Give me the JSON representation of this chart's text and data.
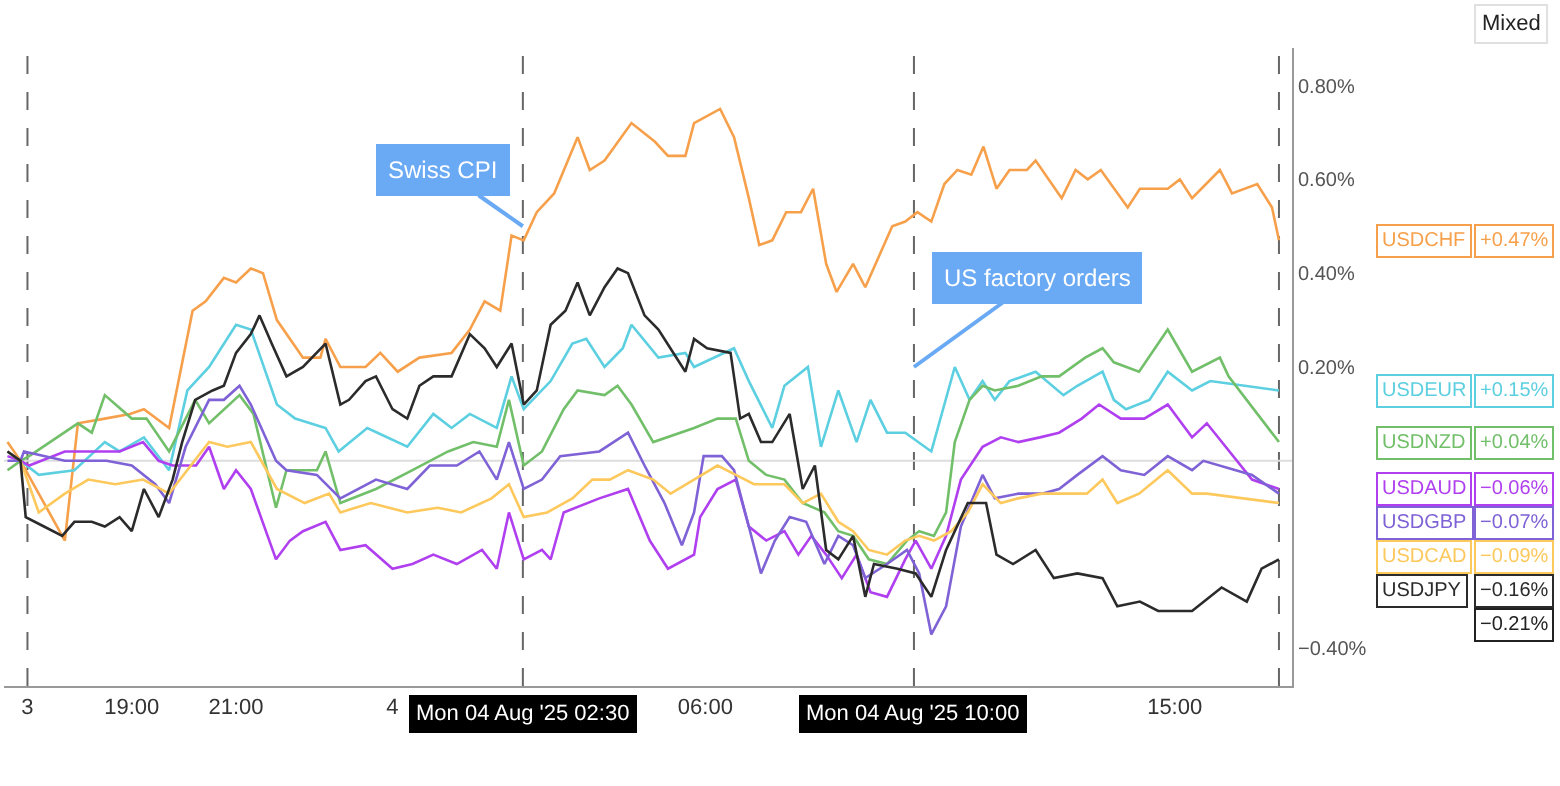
{
  "chart_data": {
    "type": "line",
    "legend": "right",
    "xlim": [
      "2025-08-03T16:33",
      "2025-08-04T17:15"
    ],
    "ylim": [
      -0.48,
      0.88
    ],
    "xticks": [
      {
        "value": "2025-08-03T17:00",
        "label": "3"
      },
      {
        "value": "2025-08-03T19:00",
        "label": "19:00"
      },
      {
        "value": "2025-08-03T21:00",
        "label": "21:00"
      },
      {
        "value": "2025-08-04T00:00",
        "label": "4"
      },
      {
        "value": "2025-08-04T06:00",
        "label": "06:00"
      },
      {
        "value": "2025-08-04T15:00",
        "label": "15:00"
      }
    ],
    "yticks": [
      {
        "value": 0.8,
        "label": "0.80%"
      },
      {
        "value": 0.6,
        "label": "0.60%"
      },
      {
        "value": 0.4,
        "label": "0.40%"
      },
      {
        "value": 0.2,
        "label": "0.20%"
      },
      {
        "value": -0.4,
        "label": "−0.40%"
      }
    ],
    "series": [
      {
        "name": "USDCHF",
        "color": "#f7a04b",
        "x": [
          "2025-08-03T16:37",
          "2025-08-03T16:52",
          "2025-08-03T17:43",
          "2025-08-03T17:58",
          "2025-08-03T18:29",
          "2025-08-03T18:58",
          "2025-08-03T19:14",
          "2025-08-03T19:43",
          "2025-08-03T20:10",
          "2025-08-03T20:25",
          "2025-08-03T20:46",
          "2025-08-03T21:00",
          "2025-08-03T21:17",
          "2025-08-03T21:31",
          "2025-08-03T21:47",
          "2025-08-03T22:17",
          "2025-08-03T22:37",
          "2025-08-03T22:43",
          "2025-08-03T23:00",
          "2025-08-03T23:29",
          "2025-08-03T23:46",
          "2025-08-04T00:06",
          "2025-08-04T00:31",
          "2025-08-04T01:08",
          "2025-08-04T01:29",
          "2025-08-04T01:46",
          "2025-08-04T02:04",
          "2025-08-04T02:17",
          "2025-08-04T02:31",
          "2025-08-04T02:46",
          "2025-08-04T03:06",
          "2025-08-04T03:33",
          "2025-08-04T03:47",
          "2025-08-04T04:04",
          "2025-08-04T04:35",
          "2025-08-04T05:02",
          "2025-08-04T05:17",
          "2025-08-04T05:37",
          "2025-08-04T05:47",
          "2025-08-04T06:17",
          "2025-08-04T06:33",
          "2025-08-04T06:50",
          "2025-08-04T07:02",
          "2025-08-04T07:17",
          "2025-08-04T07:33",
          "2025-08-04T07:50",
          "2025-08-04T08:04",
          "2025-08-04T08:19",
          "2025-08-04T08:31",
          "2025-08-04T08:50",
          "2025-08-04T09:04",
          "2025-08-04T09:35",
          "2025-08-04T09:50",
          "2025-08-04T10:04",
          "2025-08-04T10:20",
          "2025-08-04T10:35",
          "2025-08-04T10:50",
          "2025-08-04T11:06",
          "2025-08-04T11:20",
          "2025-08-04T11:35",
          "2025-08-04T11:50",
          "2025-08-04T12:10",
          "2025-08-04T12:20",
          "2025-08-04T12:50",
          "2025-08-04T13:06",
          "2025-08-04T13:20",
          "2025-08-04T13:35",
          "2025-08-04T14:06",
          "2025-08-04T14:20",
          "2025-08-04T14:52",
          "2025-08-04T15:06",
          "2025-08-04T15:20",
          "2025-08-04T15:52",
          "2025-08-04T16:06",
          "2025-08-04T16:35",
          "2025-08-04T16:52",
          "2025-08-04T17:00"
        ],
        "values": [
          0.04,
          0,
          -0.17,
          0.08,
          0.09,
          0.1,
          0.11,
          0.07,
          0.32,
          0.34,
          0.39,
          0.38,
          0.41,
          0.4,
          0.3,
          0.22,
          0.22,
          0.26,
          0.2,
          0.2,
          0.23,
          0.19,
          0.22,
          0.23,
          0.28,
          0.34,
          0.32,
          0.48,
          0.47,
          0.53,
          0.57,
          0.69,
          0.62,
          0.64,
          0.72,
          0.68,
          0.65,
          0.65,
          0.72,
          0.75,
          0.69,
          0.56,
          0.46,
          0.47,
          0.53,
          0.53,
          0.58,
          0.42,
          0.36,
          0.42,
          0.37,
          0.5,
          0.51,
          0.53,
          0.51,
          0.59,
          0.62,
          0.61,
          0.67,
          0.58,
          0.62,
          0.62,
          0.64,
          0.56,
          0.62,
          0.6,
          0.62,
          0.54,
          0.58,
          0.58,
          0.6,
          0.56,
          0.62,
          0.57,
          0.59,
          0.54,
          0.47
        ]
      },
      {
        "name": "USDEUR",
        "color": "#5ccfe0",
        "x": [
          "2025-08-03T16:37",
          "2025-08-03T16:52",
          "2025-08-03T17:13",
          "2025-08-03T17:54",
          "2025-08-03T18:29",
          "2025-08-03T18:46",
          "2025-08-03T19:14",
          "2025-08-03T19:43",
          "2025-08-03T20:04",
          "2025-08-03T20:29",
          "2025-08-03T21:00",
          "2025-08-03T21:17",
          "2025-08-03T21:47",
          "2025-08-03T22:08",
          "2025-08-03T22:43",
          "2025-08-03T22:58",
          "2025-08-03T23:31",
          "2025-08-04T00:17",
          "2025-08-04T00:47",
          "2025-08-04T01:08",
          "2025-08-04T01:29",
          "2025-08-04T02:00",
          "2025-08-04T02:17",
          "2025-08-04T02:31",
          "2025-08-04T03:02",
          "2025-08-04T03:27",
          "2025-08-04T03:43",
          "2025-08-04T04:04",
          "2025-08-04T04:25",
          "2025-08-04T04:35",
          "2025-08-04T05:06",
          "2025-08-04T05:37",
          "2025-08-04T05:47",
          "2025-08-04T06:33",
          "2025-08-04T06:50",
          "2025-08-04T07:17",
          "2025-08-04T07:31",
          "2025-08-04T07:58",
          "2025-08-04T08:13",
          "2025-08-04T08:33",
          "2025-08-04T08:54",
          "2025-08-04T09:10",
          "2025-08-04T09:29",
          "2025-08-04T09:50",
          "2025-08-04T10:20",
          "2025-08-04T10:47",
          "2025-08-04T11:04",
          "2025-08-04T11:19",
          "2025-08-04T11:33",
          "2025-08-04T11:50",
          "2025-08-04T12:20",
          "2025-08-04T12:52",
          "2025-08-04T13:08",
          "2025-08-04T13:37",
          "2025-08-04T13:50",
          "2025-08-04T14:04",
          "2025-08-04T14:31",
          "2025-08-04T14:52",
          "2025-08-04T15:20",
          "2025-08-04T15:41",
          "2025-08-04T17:00"
        ],
        "values": [
          0.02,
          0,
          -0.03,
          -0.02,
          0.04,
          0.02,
          0.05,
          -0.02,
          0.15,
          0.2,
          0.29,
          0.28,
          0.12,
          0.09,
          0.07,
          0.02,
          0.07,
          0.03,
          0.1,
          0.07,
          0.1,
          0.07,
          0.18,
          0.11,
          0.17,
          0.25,
          0.26,
          0.2,
          0.24,
          0.29,
          0.22,
          0.23,
          0.2,
          0.24,
          0.17,
          0.07,
          0.16,
          0.2,
          0.03,
          0.15,
          0.04,
          0.13,
          0.06,
          0.06,
          0.02,
          0.2,
          0.13,
          0.17,
          0.13,
          0.17,
          0.19,
          0.14,
          0.16,
          0.19,
          0.13,
          0.11,
          0.13,
          0.19,
          0.15,
          0.17,
          0.15
        ]
      },
      {
        "name": "USDNZD",
        "color": "#72bf6a",
        "x": [
          "2025-08-03T16:37",
          "2025-08-03T16:52",
          "2025-08-03T17:02",
          "2025-08-03T17:58",
          "2025-08-03T18:14",
          "2025-08-03T18:29",
          "2025-08-03T19:00",
          "2025-08-03T19:17",
          "2025-08-03T19:43",
          "2025-08-03T20:13",
          "2025-08-03T20:29",
          "2025-08-03T21:04",
          "2025-08-03T21:20",
          "2025-08-03T21:46",
          "2025-08-03T21:58",
          "2025-08-03T22:33",
          "2025-08-03T22:43",
          "2025-08-03T23:00",
          "2025-08-03T23:41",
          "2025-08-04T00:23",
          "2025-08-04T01:04",
          "2025-08-04T01:33",
          "2025-08-04T02:00",
          "2025-08-04T02:14",
          "2025-08-04T02:31",
          "2025-08-04T02:52",
          "2025-08-04T03:17",
          "2025-08-04T03:33",
          "2025-08-04T04:04",
          "2025-08-04T04:19",
          "2025-08-04T04:35",
          "2025-08-04T05:00",
          "2025-08-04T05:47",
          "2025-08-04T06:14",
          "2025-08-04T06:35",
          "2025-08-04T06:50",
          "2025-08-04T07:10",
          "2025-08-04T07:31",
          "2025-08-04T07:52",
          "2025-08-04T08:17",
          "2025-08-04T08:33",
          "2025-08-04T08:50",
          "2025-08-04T09:08",
          "2025-08-04T09:29",
          "2025-08-04T09:52",
          "2025-08-04T10:06",
          "2025-08-04T10:23",
          "2025-08-04T10:37",
          "2025-08-04T10:47",
          "2025-08-04T11:04",
          "2025-08-04T11:19",
          "2025-08-04T11:33",
          "2025-08-04T12:00",
          "2025-08-04T12:27",
          "2025-08-04T12:47",
          "2025-08-04T13:17",
          "2025-08-04T13:37",
          "2025-08-04T13:50",
          "2025-08-04T14:19",
          "2025-08-04T14:52",
          "2025-08-04T15:20",
          "2025-08-04T15:52",
          "2025-08-04T16:02",
          "2025-08-04T17:00"
        ],
        "values": [
          -0.02,
          0,
          0.01,
          0.08,
          0.06,
          0.14,
          0.09,
          0.09,
          0.02,
          0.13,
          0.08,
          0.14,
          0.1,
          -0.1,
          -0.02,
          -0.02,
          0.02,
          -0.09,
          -0.06,
          -0.02,
          0.02,
          0.04,
          0.03,
          0.13,
          -0.01,
          0.02,
          0.11,
          0.15,
          0.14,
          0.16,
          0.12,
          0.04,
          0.07,
          0.09,
          0.09,
          0,
          -0.03,
          -0.04,
          -0.09,
          -0.11,
          -0.15,
          -0.16,
          -0.21,
          -0.22,
          -0.17,
          -0.15,
          -0.16,
          -0.11,
          0.04,
          0.13,
          0.16,
          0.15,
          0.16,
          0.18,
          0.18,
          0.22,
          0.24,
          0.21,
          0.19,
          0.28,
          0.19,
          0.22,
          0.18,
          0.04
        ]
      },
      {
        "name": "USDAUD",
        "color": "#b03ff0",
        "x": [
          "2025-08-03T16:37",
          "2025-08-03T16:52",
          "2025-08-03T17:02",
          "2025-08-03T17:43",
          "2025-08-03T18:25",
          "2025-08-03T18:46",
          "2025-08-03T19:13",
          "2025-08-03T19:31",
          "2025-08-03T19:47",
          "2025-08-03T20:14",
          "2025-08-03T20:29",
          "2025-08-03T20:46",
          "2025-08-03T21:00",
          "2025-08-03T21:17",
          "2025-08-03T21:46",
          "2025-08-03T22:02",
          "2025-08-03T22:17",
          "2025-08-03T22:43",
          "2025-08-03T23:00",
          "2025-08-03T23:29",
          "2025-08-04T00:00",
          "2025-08-04T00:23",
          "2025-08-04T00:47",
          "2025-08-04T01:14",
          "2025-08-04T01:43",
          "2025-08-04T02:00",
          "2025-08-04T02:14",
          "2025-08-04T02:31",
          "2025-08-04T02:52",
          "2025-08-04T03:02",
          "2025-08-04T03:17",
          "2025-08-04T03:58",
          "2025-08-04T04:31",
          "2025-08-04T04:56",
          "2025-08-04T05:17",
          "2025-08-04T05:47",
          "2025-08-04T05:54",
          "2025-08-04T06:14",
          "2025-08-04T06:35",
          "2025-08-04T06:50",
          "2025-08-04T07:10",
          "2025-08-04T07:31",
          "2025-08-04T07:47",
          "2025-08-04T08:02",
          "2025-08-04T08:19",
          "2025-08-04T08:37",
          "2025-08-04T08:54",
          "2025-08-04T09:10",
          "2025-08-04T09:29",
          "2025-08-04T09:50",
          "2025-08-04T10:02",
          "2025-08-04T10:20",
          "2025-08-04T10:37",
          "2025-08-04T10:54",
          "2025-08-04T11:19",
          "2025-08-04T11:40",
          "2025-08-04T12:00",
          "2025-08-04T12:25",
          "2025-08-04T12:47",
          "2025-08-04T13:13",
          "2025-08-04T13:33",
          "2025-08-04T13:58",
          "2025-08-04T14:25",
          "2025-08-04T14:52",
          "2025-08-04T15:20",
          "2025-08-04T15:37",
          "2025-08-04T16:29",
          "2025-08-04T17:00"
        ],
        "values": [
          0.01,
          0,
          -0.01,
          0.02,
          0.02,
          0.02,
          0.04,
          0,
          -0.01,
          -0.01,
          0.03,
          -0.06,
          -0.02,
          -0.06,
          -0.21,
          -0.17,
          -0.15,
          -0.13,
          -0.19,
          -0.18,
          -0.23,
          -0.22,
          -0.2,
          -0.22,
          -0.19,
          -0.23,
          -0.11,
          -0.21,
          -0.19,
          -0.21,
          -0.11,
          -0.08,
          -0.06,
          -0.17,
          -0.23,
          -0.2,
          -0.12,
          -0.06,
          -0.04,
          -0.14,
          -0.17,
          -0.15,
          -0.2,
          -0.16,
          -0.2,
          -0.25,
          -0.2,
          -0.28,
          -0.29,
          -0.21,
          -0.17,
          -0.23,
          -0.16,
          -0.04,
          0.03,
          0.05,
          0.04,
          0.05,
          0.06,
          0.09,
          0.12,
          0.09,
          0.09,
          0.12,
          0.05,
          0.08,
          -0.04,
          -0.06
        ]
      },
      {
        "name": "USDGBP",
        "color": "#7e62d6",
        "x": [
          "2025-08-03T16:37",
          "2025-08-03T16:52",
          "2025-08-03T16:56",
          "2025-08-03T17:43",
          "2025-08-03T18:31",
          "2025-08-03T19:00",
          "2025-08-03T19:27",
          "2025-08-03T19:43",
          "2025-08-03T20:02",
          "2025-08-03T20:29",
          "2025-08-03T20:46",
          "2025-08-03T21:04",
          "2025-08-03T21:17",
          "2025-08-03T21:46",
          "2025-08-03T21:58",
          "2025-08-03T22:33",
          "2025-08-03T23:00",
          "2025-08-03T23:41",
          "2025-08-04T00:17",
          "2025-08-04T00:43",
          "2025-08-04T01:14",
          "2025-08-04T01:40",
          "2025-08-04T02:00",
          "2025-08-04T02:14",
          "2025-08-04T02:31",
          "2025-08-04T02:52",
          "2025-08-04T03:13",
          "2025-08-04T03:58",
          "2025-08-04T04:31",
          "2025-08-04T04:50",
          "2025-08-04T05:13",
          "2025-08-04T05:33",
          "2025-08-04T05:47",
          "2025-08-04T05:58",
          "2025-08-04T06:19",
          "2025-08-04T06:33",
          "2025-08-04T06:50",
          "2025-08-04T07:04",
          "2025-08-04T07:20",
          "2025-08-04T07:37",
          "2025-08-04T07:56",
          "2025-08-04T08:17",
          "2025-08-04T08:33",
          "2025-08-04T08:50",
          "2025-08-04T09:04",
          "2025-08-04T09:29",
          "2025-08-04T09:52",
          "2025-08-04T10:06",
          "2025-08-04T10:20",
          "2025-08-04T10:37",
          "2025-08-04T10:54",
          "2025-08-04T11:19",
          "2025-08-04T11:33",
          "2025-08-04T12:00",
          "2025-08-04T12:27",
          "2025-08-04T12:47",
          "2025-08-04T13:08",
          "2025-08-04T13:37",
          "2025-08-04T13:58",
          "2025-08-04T14:25",
          "2025-08-04T14:52",
          "2025-08-04T15:20",
          "2025-08-04T15:33",
          "2025-08-04T16:29",
          "2025-08-04T17:00"
        ],
        "values": [
          0,
          0,
          0.02,
          0,
          0,
          -0.01,
          -0.05,
          -0.09,
          0.03,
          0.13,
          0.13,
          0.16,
          0.12,
          0,
          -0.02,
          -0.03,
          -0.08,
          -0.04,
          -0.06,
          -0.01,
          -0.01,
          0.02,
          -0.04,
          0.04,
          -0.06,
          -0.04,
          0.01,
          0.02,
          0.06,
          -0.01,
          -0.09,
          -0.18,
          -0.11,
          0.01,
          0.01,
          -0.02,
          -0.14,
          -0.24,
          -0.17,
          -0.12,
          -0.13,
          -0.22,
          -0.16,
          -0.18,
          -0.25,
          -0.22,
          -0.19,
          -0.24,
          -0.37,
          -0.31,
          -0.14,
          -0.03,
          -0.08,
          -0.07,
          -0.07,
          -0.06,
          -0.03,
          0.01,
          -0.02,
          -0.03,
          0.01,
          -0.02,
          0,
          -0.03,
          -0.07
        ]
      },
      {
        "name": "USDCAD",
        "color": "#fdc85c",
        "x": [
          "2025-08-03T16:37",
          "2025-08-03T16:52",
          "2025-08-03T17:13",
          "2025-08-03T17:43",
          "2025-08-03T18:10",
          "2025-08-03T18:41",
          "2025-08-03T19:13",
          "2025-08-03T19:43",
          "2025-08-03T20:08",
          "2025-08-03T20:29",
          "2025-08-03T20:50",
          "2025-08-03T21:17",
          "2025-08-03T21:47",
          "2025-08-03T22:19",
          "2025-08-03T22:47",
          "2025-08-03T23:00",
          "2025-08-03T23:35",
          "2025-08-04T00:17",
          "2025-08-04T00:52",
          "2025-08-04T01:19",
          "2025-08-04T01:54",
          "2025-08-04T02:14",
          "2025-08-04T02:31",
          "2025-08-04T02:58",
          "2025-08-04T03:27",
          "2025-08-04T03:50",
          "2025-08-04T04:10",
          "2025-08-04T04:31",
          "2025-08-04T05:00",
          "2025-08-04T05:20",
          "2025-08-04T05:47",
          "2025-08-04T06:14",
          "2025-08-04T06:35",
          "2025-08-04T06:56",
          "2025-08-04T07:31",
          "2025-08-04T07:52",
          "2025-08-04T08:13",
          "2025-08-04T08:33",
          "2025-08-04T08:50",
          "2025-08-04T09:08",
          "2025-08-04T09:29",
          "2025-08-04T09:50",
          "2025-08-04T10:06",
          "2025-08-04T10:23",
          "2025-08-04T10:43",
          "2025-08-04T11:02",
          "2025-08-04T11:19",
          "2025-08-04T11:40",
          "2025-08-04T12:00",
          "2025-08-04T12:27",
          "2025-08-04T12:56",
          "2025-08-04T13:19",
          "2025-08-04T13:37",
          "2025-08-04T13:54",
          "2025-08-04T14:19",
          "2025-08-04T14:52",
          "2025-08-04T15:20",
          "2025-08-04T15:37",
          "2025-08-04T17:00"
        ],
        "values": [
          0.02,
          0,
          -0.11,
          -0.07,
          -0.04,
          -0.05,
          -0.04,
          -0.07,
          -0.01,
          0.04,
          0.03,
          0.04,
          -0.06,
          -0.09,
          -0.07,
          -0.11,
          -0.09,
          -0.11,
          -0.1,
          -0.11,
          -0.08,
          -0.05,
          -0.12,
          -0.11,
          -0.08,
          -0.04,
          -0.04,
          -0.02,
          -0.04,
          -0.07,
          -0.04,
          -0.01,
          -0.03,
          -0.05,
          -0.05,
          -0.09,
          -0.07,
          -0.13,
          -0.15,
          -0.19,
          -0.2,
          -0.17,
          -0.16,
          -0.17,
          -0.15,
          -0.11,
          -0.05,
          -0.09,
          -0.08,
          -0.07,
          -0.07,
          -0.07,
          -0.04,
          -0.09,
          -0.07,
          -0.02,
          -0.07,
          -0.07,
          -0.09
        ]
      },
      {
        "name": "USDJPY",
        "color": "#2b2b2b",
        "x": [
          "2025-08-03T16:37",
          "2025-08-03T16:52",
          "2025-08-03T16:58",
          "2025-08-03T17:19",
          "2025-08-03T17:40",
          "2025-08-03T17:54",
          "2025-08-03T18:14",
          "2025-08-03T18:29",
          "2025-08-03T18:46",
          "2025-08-03T19:00",
          "2025-08-03T19:14",
          "2025-08-03T19:31",
          "2025-08-03T19:47",
          "2025-08-03T19:58",
          "2025-08-03T20:13",
          "2025-08-03T20:33",
          "2025-08-03T20:46",
          "2025-08-03T21:00",
          "2025-08-03T21:17",
          "2025-08-03T21:27",
          "2025-08-03T21:41",
          "2025-08-03T21:58",
          "2025-08-03T22:17",
          "2025-08-03T22:43",
          "2025-08-03T23:00",
          "2025-08-03T23:10",
          "2025-08-03T23:29",
          "2025-08-03T23:41",
          "2025-08-04T00:00",
          "2025-08-04T00:17",
          "2025-08-04T00:31",
          "2025-08-04T00:47",
          "2025-08-04T01:08",
          "2025-08-04T01:29",
          "2025-08-04T01:46",
          "2025-08-04T02:00",
          "2025-08-04T02:17",
          "2025-08-04T02:31",
          "2025-08-04T02:46",
          "2025-08-04T03:02",
          "2025-08-04T03:19",
          "2025-08-04T03:33",
          "2025-08-04T03:47",
          "2025-08-04T04:04",
          "2025-08-04T04:19",
          "2025-08-04T04:31",
          "2025-08-04T04:50",
          "2025-08-04T05:06",
          "2025-08-04T05:37",
          "2025-08-04T05:47",
          "2025-08-04T06:02",
          "2025-08-04T06:29",
          "2025-08-04T06:40",
          "2025-08-04T06:50",
          "2025-08-04T07:04",
          "2025-08-04T07:17",
          "2025-08-04T07:37",
          "2025-08-04T07:52",
          "2025-08-04T08:06",
          "2025-08-04T08:19",
          "2025-08-04T08:33",
          "2025-08-04T08:50",
          "2025-08-04T09:04",
          "2025-08-04T09:14",
          "2025-08-04T09:41",
          "2025-08-04T10:02",
          "2025-08-04T10:20",
          "2025-08-04T10:37",
          "2025-08-04T11:02",
          "2025-08-04T11:14",
          "2025-08-04T11:23",
          "2025-08-04T11:35",
          "2025-08-04T11:54",
          "2025-08-04T12:20",
          "2025-08-04T12:41",
          "2025-08-04T13:08",
          "2025-08-04T13:37",
          "2025-08-04T13:54",
          "2025-08-04T14:20",
          "2025-08-04T14:41",
          "2025-08-04T15:20",
          "2025-08-04T15:54",
          "2025-08-04T16:23",
          "2025-08-04T16:40",
          "2025-08-04T17:00"
        ],
        "values": [
          0.02,
          0,
          -0.12,
          -0.14,
          -0.16,
          -0.13,
          -0.13,
          -0.14,
          -0.12,
          -0.15,
          -0.06,
          -0.12,
          -0.04,
          0.04,
          0.13,
          0.15,
          0.16,
          0.23,
          0.27,
          0.31,
          0.25,
          0.18,
          0.2,
          0.25,
          0.12,
          0.13,
          0.17,
          0.18,
          0.11,
          0.09,
          0.16,
          0.18,
          0.18,
          0.27,
          0.24,
          0.2,
          0.25,
          0.12,
          0.15,
          0.29,
          0.32,
          0.38,
          0.31,
          0.37,
          0.41,
          0.4,
          0.31,
          0.28,
          0.19,
          0.26,
          0.24,
          0.23,
          0.09,
          0.1,
          0.04,
          0.04,
          0.1,
          -0.06,
          -0.01,
          -0.19,
          -0.21,
          -0.16,
          -0.29,
          -0.22,
          -0.23,
          -0.24,
          -0.29,
          -0.19,
          -0.09,
          -0.09,
          -0.09,
          -0.2,
          -0.22,
          -0.19,
          -0.25,
          -0.24,
          -0.25,
          -0.31,
          -0.3,
          -0.32,
          -0.32,
          -0.27,
          -0.3,
          -0.23,
          -0.21
        ]
      }
    ],
    "ref_lines": [
      {
        "axis": "x",
        "value": "2025-08-03T17:00",
        "color": "#666666",
        "line_style": "dashed"
      },
      {
        "axis": "x",
        "value": "2025-08-04T02:30",
        "label": "Mon 04 Aug '25 02:30",
        "color": "#666666",
        "line_style": "dashed"
      },
      {
        "axis": "x",
        "value": "2025-08-04T10:00",
        "label": "Mon 04 Aug '25 10:00",
        "color": "#666666",
        "line_style": "dashed"
      },
      {
        "axis": "x",
        "value": "2025-08-04T17:00",
        "color": "#666666",
        "line_style": "dashed"
      },
      {
        "axis": "y",
        "value": 0,
        "color": "#dddddd",
        "line_style": "solid"
      }
    ],
    "annotations": [
      {
        "text": "Swiss CPI",
        "x": "2025-08-04T02:30",
        "y": 0.5
      },
      {
        "text": "US factory orders",
        "x": "2025-08-04T10:00",
        "y": 0.2
      },
      "Mixed",
      "+0.47%",
      "+0.15%",
      "+0.04%",
      "−0.06%",
      "−0.07%",
      "−0.09%",
      "−0.16%",
      "−0.21%"
    ]
  }
}
